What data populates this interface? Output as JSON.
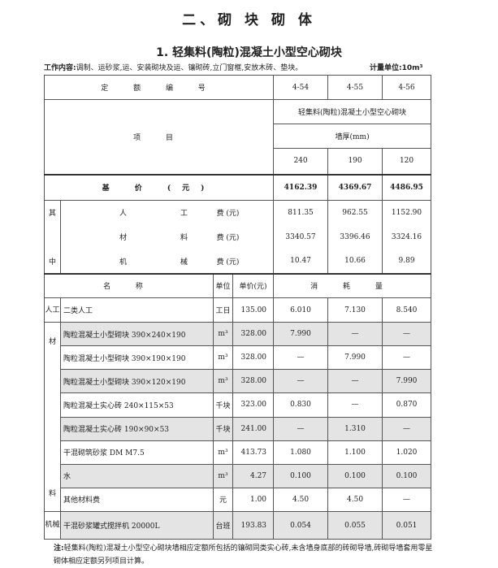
{
  "chapter_title": "二、砌 块 砌 体",
  "section_title": "1. 轻集料(陶粒)混凝土小型空心砌块",
  "work_content_label": "工作内容:",
  "work_content": "调制、运砂浆,运、安装砌块及运、镶砌砖,立门窗框,安放木砖、垫块。",
  "measure_unit": "计量单位:10m³",
  "header": {
    "code_label": "定 额 编 号",
    "codes": [
      "4-54",
      "4-55",
      "4-56"
    ],
    "item_label": "项 目",
    "category": "轻集料(陶粒)混凝土小型空心砌块",
    "subcategory": "墙厚(mm)",
    "thickness": [
      "240",
      "190",
      "120"
    ]
  },
  "base_price": {
    "label": "基 价 (元)",
    "values": [
      "4162.39",
      "4369.67",
      "4486.95"
    ]
  },
  "breakdown": {
    "side_top": "其",
    "side_bottom": "中",
    "rows": [
      {
        "c1": "人",
        "c2": "工",
        "c3": "费 (元)",
        "values": [
          "811.35",
          "962.55",
          "1152.90"
        ]
      },
      {
        "c1": "材",
        "c2": "料",
        "c3": "费 (元)",
        "values": [
          "3340.57",
          "3396.46",
          "3324.16"
        ]
      },
      {
        "c1": "机",
        "c2": "械",
        "c3": "费 (元)",
        "values": [
          "10.47",
          "10.66",
          "9.89"
        ]
      }
    ]
  },
  "consumption_header": {
    "name": "名 称",
    "unit": "单位",
    "price": "单价(元)",
    "quantity": "消 耗 量"
  },
  "labor": {
    "side": "人工",
    "name": "二类人工",
    "unit": "工日",
    "price": "135.00",
    "values": [
      "6.010",
      "7.130",
      "8.540"
    ]
  },
  "materials": {
    "side_top": "材",
    "side_bottom": "料",
    "rows": [
      {
        "name": "陶粒混凝土小型砌块 390×240×190",
        "unit": "m³",
        "price": "328.00",
        "values": [
          "7.990",
          "—",
          "—"
        ]
      },
      {
        "name": "陶粒混凝土小型砌块 390×190×190",
        "unit": "m³",
        "price": "328.00",
        "values": [
          "—",
          "7.990",
          "—"
        ]
      },
      {
        "name": "陶粒混凝土小型砌块 390×120×190",
        "unit": "m³",
        "price": "328.00",
        "values": [
          "—",
          "—",
          "7.990"
        ]
      },
      {
        "name": "陶粒混凝土实心砖 240×115×53",
        "unit": "千块",
        "price": "323.00",
        "values": [
          "0.830",
          "—",
          "0.870"
        ]
      },
      {
        "name": "陶粒混凝土实心砖 190×90×53",
        "unit": "千块",
        "price": "241.00",
        "values": [
          "—",
          "1.310",
          "—"
        ]
      },
      {
        "name": "干混砌筑砂浆 DM M7.5",
        "unit": "m³",
        "price": "413.73",
        "values": [
          "1.080",
          "1.100",
          "1.020"
        ]
      },
      {
        "name": "水",
        "unit": "m³",
        "price": "4.27",
        "values": [
          "0.100",
          "0.100",
          "0.100"
        ]
      },
      {
        "name": "其他材料费",
        "unit": "元",
        "price": "1.00",
        "values": [
          "4.50",
          "4.50",
          "—"
        ]
      }
    ]
  },
  "machinery": {
    "side": "机械",
    "name": "干混砂浆罐式搅拌机 20000L",
    "unit": "台班",
    "price": "193.83",
    "values": [
      "0.054",
      "0.055",
      "0.051"
    ]
  },
  "note_label": "注:",
  "note": "轻集料(陶粒)混凝土小型空心砌块墙相应定额所包括的镶砌同类实心砖,未含墙身底部的砖砌导墙,砖砌导墙套用零星砌体相应定额另列项目计算。"
}
